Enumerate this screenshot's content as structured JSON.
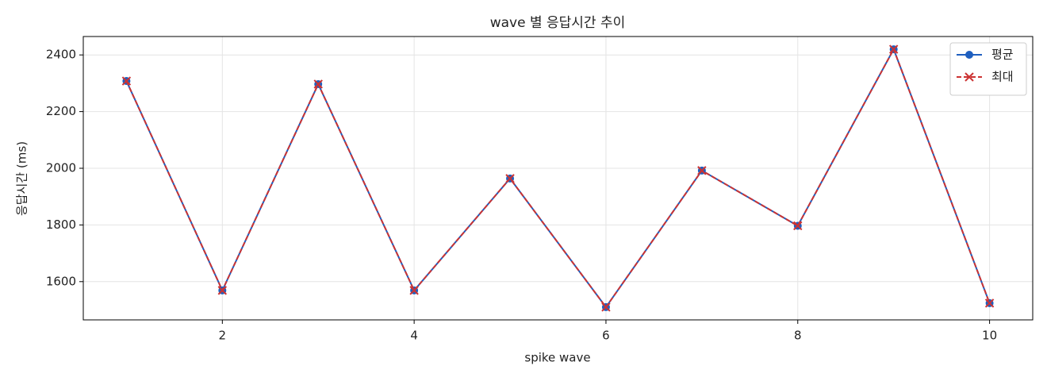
{
  "chart_data": {
    "type": "line",
    "title": "wave 별 응답시간 추이",
    "xlabel": "spike wave",
    "ylabel": "응답시간 (ms)",
    "x": [
      1,
      2,
      3,
      4,
      5,
      6,
      7,
      8,
      9,
      10
    ],
    "series": [
      {
        "name": "평균",
        "color": "#1f5fbf",
        "marker": "o",
        "linestyle": "solid",
        "values": [
          2308,
          1569,
          2297,
          1569,
          1964,
          1510,
          1992,
          1797,
          2420,
          1524
        ]
      },
      {
        "name": "최대",
        "color": "#cc3333",
        "marker": "x",
        "linestyle": "dashed",
        "values": [
          2308,
          1569,
          2297,
          1569,
          1964,
          1510,
          1992,
          1797,
          2420,
          1524
        ]
      }
    ],
    "xlim": [
      0.55,
      10.45
    ],
    "ylim": [
      1465,
      2465
    ],
    "xticks": [
      2,
      4,
      6,
      8,
      10
    ],
    "yticks": [
      1600,
      1800,
      2000,
      2200,
      2400
    ],
    "grid": true,
    "legend": "upper right"
  }
}
